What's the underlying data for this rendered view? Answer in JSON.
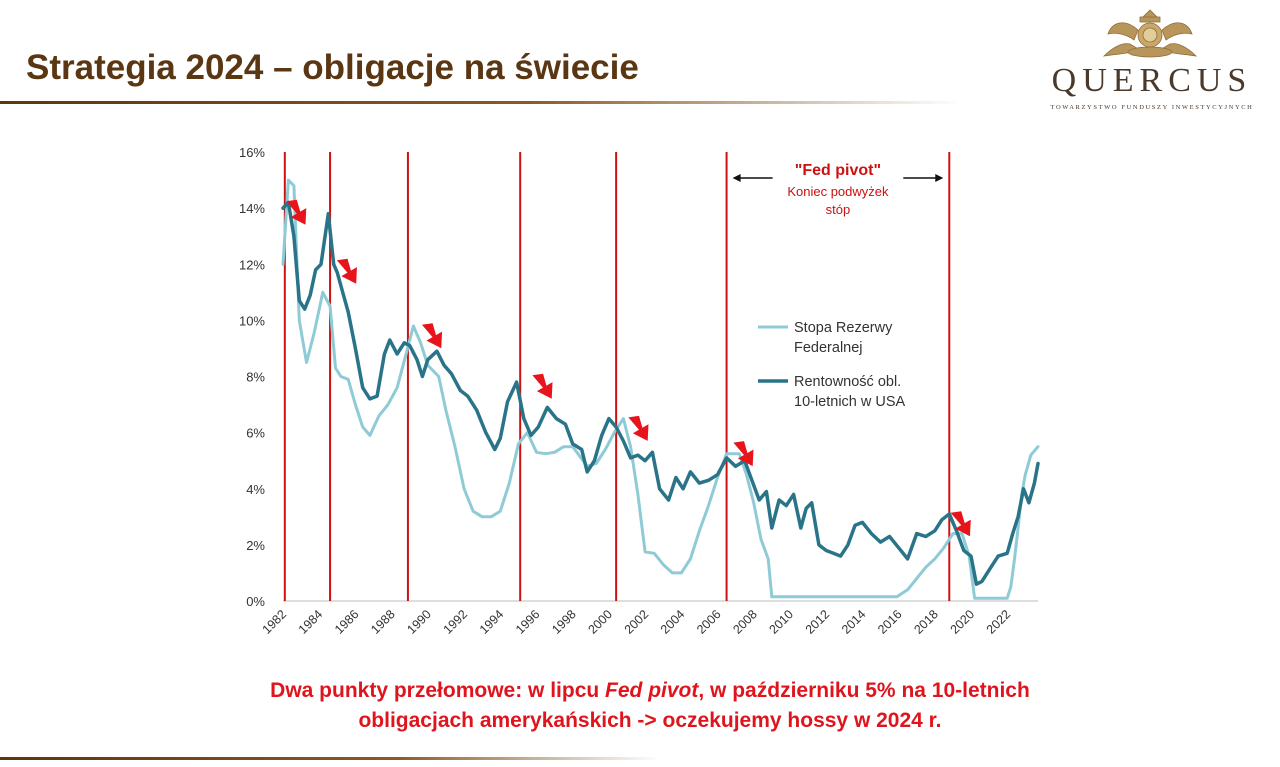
{
  "slide": {
    "title": "Strategia 2024 – obligacje na świecie",
    "logo": {
      "name": "QUERCUS",
      "subtitle": "TOWARZYSTWO FUNDUSZY INWESTYCYJNYCH"
    },
    "caption": {
      "line1_a": "Dwa punkty przełomowe: w lipcu ",
      "line1_em": "Fed pivot",
      "line1_b": ", w październiku 5% na 10-letnich",
      "line2": "obligacjach amerykańskich -> oczekujemy hossy w 2024 r."
    }
  },
  "colors": {
    "title": "#5a3612",
    "fed_rate": "#8fcbd6",
    "yield_10y": "#2a7489",
    "vlines": "#cc1111",
    "arrows": "#e8141b",
    "caption": "#e0141d"
  },
  "chart_data": {
    "type": "line",
    "xlim": [
      1982,
      2023.7
    ],
    "ylim": [
      0,
      16
    ],
    "y_unit": "%",
    "y_ticks": [
      0,
      2,
      4,
      6,
      8,
      10,
      12,
      14,
      16
    ],
    "y_tick_labels": [
      "0%",
      "2%",
      "4%",
      "6%",
      "8%",
      "10%",
      "12%",
      "14%",
      "16%"
    ],
    "x_ticks": [
      1982,
      1984,
      1986,
      1988,
      1990,
      1992,
      1994,
      1996,
      1998,
      2000,
      2002,
      2004,
      2006,
      2008,
      2010,
      2012,
      2014,
      2016,
      2018,
      2020,
      2022
    ],
    "x_tick_labels": [
      "1982",
      "1984",
      "1986",
      "1988",
      "1990",
      "1992",
      "1994",
      "1996",
      "1998",
      "2000",
      "2002",
      "2004",
      "2006",
      "2008",
      "2010",
      "2012",
      "2014",
      "2016",
      "2018",
      "2020",
      "2022"
    ],
    "grid": false,
    "legend_position": "right-center",
    "series": [
      {
        "name": "Stopa Rezerwy Federalnej",
        "legend_lines": [
          "Stopa Rezerwy",
          "Federalnej"
        ],
        "x": [
          1982.0,
          1982.3,
          1982.6,
          1982.9,
          1983.3,
          1983.7,
          1984.2,
          1984.6,
          1984.9,
          1985.2,
          1985.6,
          1986.0,
          1986.4,
          1986.8,
          1987.3,
          1987.8,
          1988.3,
          1988.8,
          1989.2,
          1989.6,
          1990.0,
          1990.6,
          1991.0,
          1991.5,
          1992.0,
          1992.5,
          1993.0,
          1993.5,
          1994.0,
          1994.5,
          1995.0,
          1995.5,
          1996.0,
          1996.5,
          1997.0,
          1997.5,
          1998.0,
          1998.8,
          1999.3,
          1999.8,
          2000.3,
          2000.8,
          2001.2,
          2001.6,
          2002.0,
          2002.5,
          2003.0,
          2003.5,
          2004.0,
          2004.5,
          2005.0,
          2005.5,
          2006.0,
          2006.5,
          2007.2,
          2007.6,
          2008.0,
          2008.4,
          2008.8,
          2009.0,
          2015.9,
          2016.5,
          2017.0,
          2017.5,
          2018.0,
          2018.5,
          2019.0,
          2019.5,
          2019.9,
          2020.2,
          2022.0,
          2022.2,
          2022.4,
          2022.6,
          2022.8,
          2023.0,
          2023.3,
          2023.7
        ],
        "values": [
          12.0,
          15.0,
          14.8,
          10.0,
          8.5,
          9.5,
          11.0,
          10.5,
          8.3,
          8.0,
          7.9,
          7.0,
          6.2,
          5.9,
          6.6,
          7.0,
          7.6,
          8.8,
          9.8,
          9.2,
          8.4,
          8.0,
          6.8,
          5.5,
          4.0,
          3.2,
          3.0,
          3.0,
          3.2,
          4.2,
          5.6,
          6.0,
          5.3,
          5.25,
          5.3,
          5.5,
          5.5,
          4.8,
          4.9,
          5.4,
          6.0,
          6.5,
          5.5,
          3.8,
          1.75,
          1.7,
          1.3,
          1.0,
          1.0,
          1.5,
          2.5,
          3.4,
          4.4,
          5.25,
          5.25,
          4.5,
          3.5,
          2.2,
          1.5,
          0.15,
          0.15,
          0.4,
          0.8,
          1.2,
          1.5,
          1.9,
          2.4,
          2.4,
          1.6,
          0.1,
          0.1,
          0.5,
          1.5,
          2.6,
          3.8,
          4.5,
          5.2,
          5.5
        ]
      },
      {
        "name": "Rentowność obl. 10-letnich w USA",
        "legend_lines": [
          "Rentowność obl.",
          "10-letnich w USA"
        ],
        "x": [
          1982.0,
          1982.3,
          1982.6,
          1982.9,
          1983.2,
          1983.5,
          1983.8,
          1984.1,
          1984.5,
          1984.8,
          1985.0,
          1985.3,
          1985.6,
          1986.0,
          1986.4,
          1986.8,
          1987.2,
          1987.6,
          1987.9,
          1988.3,
          1988.7,
          1989.0,
          1989.4,
          1989.7,
          1990.0,
          1990.5,
          1990.9,
          1991.3,
          1991.8,
          1992.2,
          1992.7,
          1993.2,
          1993.7,
          1994.0,
          1994.4,
          1994.9,
          1995.3,
          1995.7,
          1996.1,
          1996.6,
          1997.1,
          1997.6,
          1998.0,
          1998.5,
          1998.8,
          1999.2,
          1999.6,
          2000.0,
          2000.4,
          2000.8,
          2001.2,
          2001.6,
          2002.0,
          2002.4,
          2002.8,
          2003.3,
          2003.7,
          2004.1,
          2004.5,
          2005.0,
          2005.5,
          2006.0,
          2006.5,
          2007.0,
          2007.5,
          2007.9,
          2008.3,
          2008.7,
          2009.0,
          2009.4,
          2009.8,
          2010.2,
          2010.6,
          2010.9,
          2011.2,
          2011.6,
          2012.0,
          2012.4,
          2012.8,
          2013.2,
          2013.6,
          2014.0,
          2014.5,
          2015.0,
          2015.5,
          2016.0,
          2016.5,
          2017.0,
          2017.5,
          2018.0,
          2018.4,
          2018.8,
          2019.2,
          2019.6,
          2020.0,
          2020.3,
          2020.6,
          2021.0,
          2021.5,
          2022.0,
          2022.3,
          2022.6,
          2022.9,
          2023.2,
          2023.5,
          2023.7
        ],
        "values": [
          14.0,
          14.2,
          13.0,
          10.7,
          10.4,
          10.9,
          11.8,
          12.0,
          13.8,
          12.0,
          11.7,
          11.0,
          10.3,
          9.0,
          7.6,
          7.2,
          7.3,
          8.8,
          9.3,
          8.8,
          9.2,
          9.1,
          8.6,
          8.0,
          8.6,
          8.9,
          8.4,
          8.1,
          7.5,
          7.3,
          6.8,
          6.0,
          5.4,
          5.8,
          7.1,
          7.8,
          6.5,
          5.9,
          6.2,
          6.9,
          6.5,
          6.3,
          5.6,
          5.4,
          4.6,
          5.0,
          5.9,
          6.5,
          6.2,
          5.7,
          5.1,
          5.2,
          5.0,
          5.3,
          4.0,
          3.6,
          4.4,
          4.0,
          4.6,
          4.2,
          4.3,
          4.5,
          5.1,
          4.8,
          5.0,
          4.3,
          3.6,
          3.9,
          2.6,
          3.6,
          3.4,
          3.8,
          2.6,
          3.3,
          3.5,
          2.0,
          1.8,
          1.7,
          1.6,
          2.0,
          2.7,
          2.8,
          2.4,
          2.1,
          2.3,
          1.9,
          1.5,
          2.4,
          2.3,
          2.5,
          2.9,
          3.1,
          2.5,
          1.8,
          1.6,
          0.6,
          0.7,
          1.1,
          1.6,
          1.7,
          2.4,
          3.0,
          4.0,
          3.5,
          4.2,
          4.9
        ]
      }
    ],
    "vertical_markers_x": [
      1982.1,
      1984.6,
      1988.9,
      1995.1,
      2000.4,
      2006.5,
      2018.8
    ],
    "arrow_markers": [
      {
        "x": 1982.8,
        "y": 13.9
      },
      {
        "x": 1985.6,
        "y": 11.8
      },
      {
        "x": 1990.3,
        "y": 9.5
      },
      {
        "x": 1996.4,
        "y": 7.7
      },
      {
        "x": 2001.7,
        "y": 6.2
      },
      {
        "x": 2007.5,
        "y": 5.3
      },
      {
        "x": 2019.5,
        "y": 2.8
      }
    ],
    "annotation": {
      "title": "\"Fed pivot\"",
      "line1": "Koniec podwyżek",
      "line2": "stóp",
      "range_x": [
        2006.5,
        2018.8
      ]
    }
  }
}
